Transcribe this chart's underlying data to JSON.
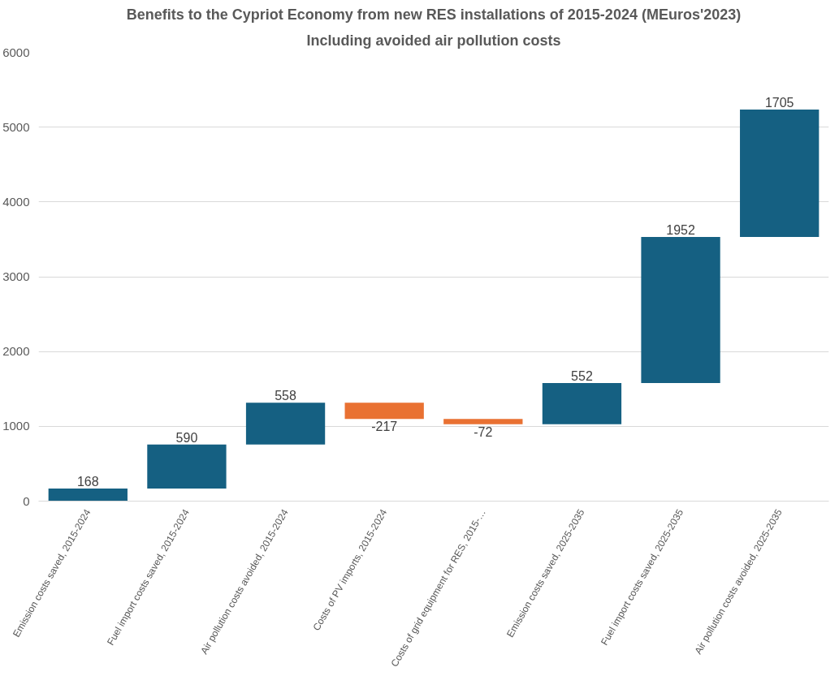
{
  "chart_data": {
    "type": "bar",
    "title": "Benefits to the Cypriot Economy from new RES installations of 2015-2024 (MEuros'2023)",
    "subtitle": "Including avoided air pollution costs",
    "categories": [
      "Emission costs saved, 2015-2024",
      "Fuel import costs saved, 2015-2024",
      "Air pollution costs avoided, 2015-2024",
      "Costs of PV imports, 2015-2024",
      "Costs of grid equipment for RES, 2015-…",
      "Emission costs saved, 2025-2035",
      "Fuel import costs saved, 2025-2035",
      "Air pollution costs avoided, 2025-2035"
    ],
    "values": [
      168,
      590,
      558,
      -217,
      -72,
      552,
      1952,
      1705
    ],
    "base": [
      0,
      168,
      758,
      1316,
      1099,
      1027,
      1579,
      3531
    ],
    "colors": [
      "#156082",
      "#156082",
      "#156082",
      "#e97132",
      "#e97132",
      "#156082",
      "#156082",
      "#156082"
    ],
    "data_labels": true,
    "ylim": [
      0,
      6000
    ],
    "yticks": [
      0,
      1000,
      2000,
      3000,
      4000,
      5000,
      6000
    ],
    "grid": "y"
  }
}
